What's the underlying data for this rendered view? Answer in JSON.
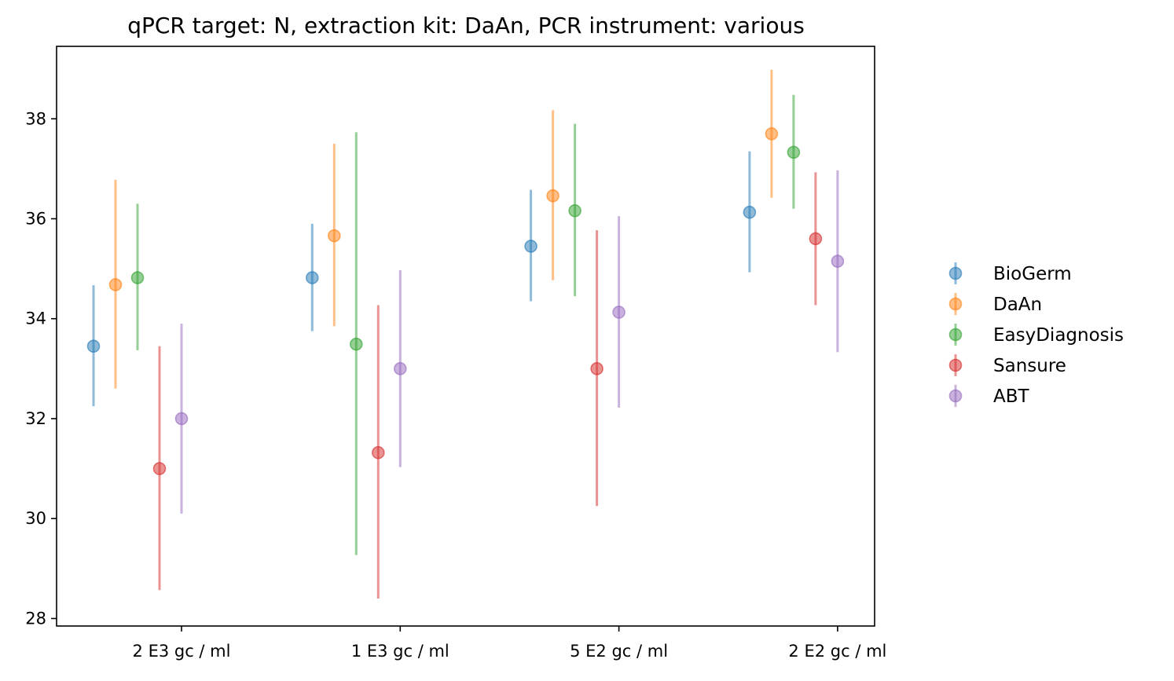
{
  "chart_data": {
    "type": "scatter",
    "title": "qPCR target: N, extraction kit: DaAn, PCR instrument: various",
    "xlabel": "",
    "ylabel": "",
    "categories": [
      "2 E3 gc / ml",
      "1 E3 gc / ml",
      "5 E2 gc / ml",
      "2 E2 gc / ml"
    ],
    "ylim": [
      27.85,
      39.45
    ],
    "yticks": [
      28,
      30,
      32,
      34,
      36,
      38
    ],
    "grid": false,
    "legend_position": "right",
    "series": [
      {
        "name": "BioGerm",
        "color": "#1f77b4",
        "values": [
          33.45,
          34.82,
          35.45,
          36.13
        ],
        "lower": [
          32.25,
          33.75,
          34.35,
          34.93
        ],
        "upper": [
          34.67,
          35.9,
          36.58,
          37.35
        ]
      },
      {
        "name": "DaAn",
        "color": "#ff7f0e",
        "values": [
          34.68,
          35.66,
          36.46,
          37.7
        ],
        "lower": [
          32.6,
          33.85,
          34.77,
          36.42
        ],
        "upper": [
          36.78,
          37.5,
          38.17,
          38.98
        ]
      },
      {
        "name": "EasyDiagnosis",
        "color": "#2ca02c",
        "values": [
          34.82,
          33.49,
          36.16,
          37.33
        ],
        "lower": [
          33.37,
          29.27,
          34.45,
          36.2
        ],
        "upper": [
          36.3,
          37.73,
          37.9,
          38.48
        ]
      },
      {
        "name": "Sansure",
        "color": "#d62728",
        "values": [
          31.0,
          31.32,
          33.0,
          35.6
        ],
        "lower": [
          28.57,
          28.4,
          30.25,
          34.27
        ],
        "upper": [
          33.45,
          34.27,
          35.77,
          36.93
        ]
      },
      {
        "name": "ABT",
        "color": "#9467bd",
        "values": [
          32.0,
          33.0,
          34.13,
          35.15
        ],
        "lower": [
          30.1,
          31.03,
          32.22,
          33.33
        ],
        "upper": [
          33.9,
          34.97,
          36.05,
          36.97
        ]
      }
    ]
  }
}
